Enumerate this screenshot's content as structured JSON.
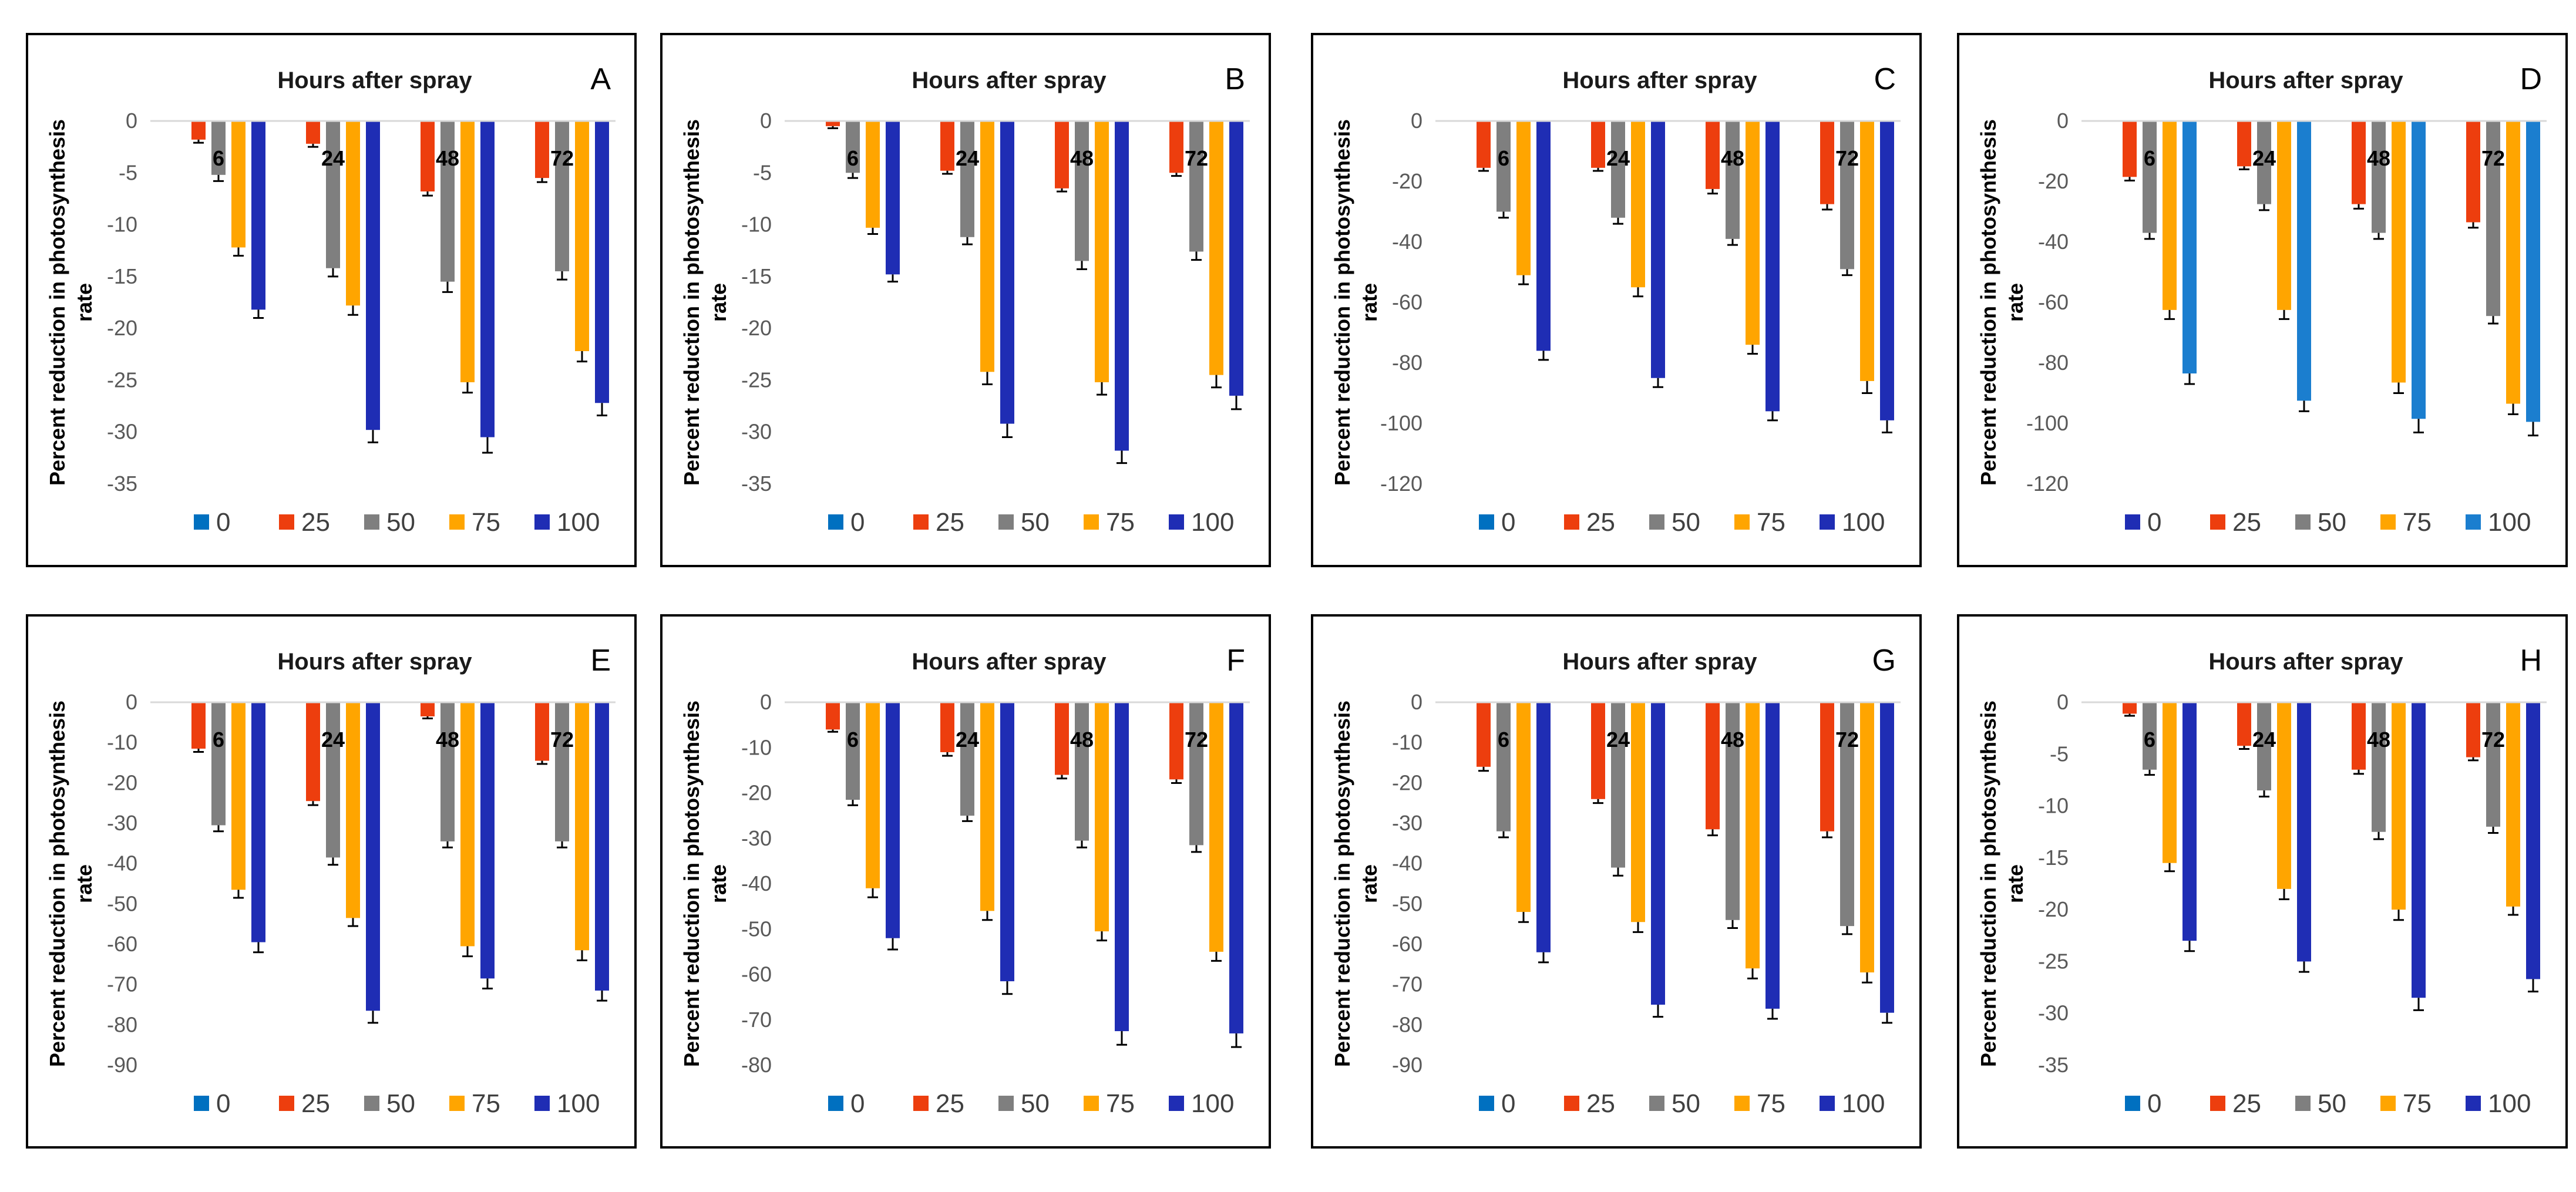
{
  "chart_data": [
    {
      "type": "bar",
      "panel": "A",
      "title": "Hours after spray",
      "ylabel": "Percent reduction in photosynthesis rate",
      "categories": [
        "6",
        "24",
        "48",
        "72"
      ],
      "ylim": [
        -35,
        0
      ],
      "yticks": [
        0,
        -5,
        -10,
        -15,
        -20,
        -25,
        -30,
        -35
      ],
      "legend": [
        {
          "name": "0",
          "color": "#0070C0"
        },
        {
          "name": "25",
          "color": "#ED3E0E"
        },
        {
          "name": "50",
          "color": "#7F7F7F"
        },
        {
          "name": "75",
          "color": "#FFA500"
        },
        {
          "name": "100",
          "color": "#1F2DB4"
        }
      ],
      "series": [
        {
          "name": "0",
          "values": [
            0,
            0,
            0,
            0
          ],
          "errors": [
            0,
            0,
            0,
            0
          ]
        },
        {
          "name": "25",
          "values": [
            -1.8,
            -2.2,
            -6.8,
            -5.5
          ],
          "errors": [
            0.3,
            0.3,
            0.4,
            0.4
          ]
        },
        {
          "name": "50",
          "values": [
            -5.2,
            -14.2,
            -15.5,
            -14.5
          ],
          "errors": [
            0.6,
            0.8,
            1.0,
            0.8
          ]
        },
        {
          "name": "75",
          "values": [
            -12.2,
            -17.8,
            -25.2,
            -22.2
          ],
          "errors": [
            0.8,
            0.9,
            1.0,
            1.0
          ]
        },
        {
          "name": "100",
          "values": [
            -18.2,
            -29.8,
            -30.5,
            -27.2
          ],
          "errors": [
            0.8,
            1.2,
            1.5,
            1.2
          ]
        }
      ]
    },
    {
      "type": "bar",
      "panel": "B",
      "title": "Hours after spray",
      "ylabel": "Percent reduction in photosynthesis rate",
      "categories": [
        "6",
        "24",
        "48",
        "72"
      ],
      "ylim": [
        -35,
        0
      ],
      "yticks": [
        0,
        -5,
        -10,
        -15,
        -20,
        -25,
        -30,
        -35
      ],
      "legend": [
        {
          "name": "0",
          "color": "#0070C0"
        },
        {
          "name": "25",
          "color": "#ED3E0E"
        },
        {
          "name": "50",
          "color": "#7F7F7F"
        },
        {
          "name": "75",
          "color": "#FFA500"
        },
        {
          "name": "100",
          "color": "#1F2DB4"
        }
      ],
      "series": [
        {
          "name": "0",
          "values": [
            0,
            0,
            0,
            0
          ],
          "errors": [
            0,
            0,
            0,
            0
          ]
        },
        {
          "name": "25",
          "values": [
            -0.5,
            -4.8,
            -6.5,
            -5.0
          ],
          "errors": [
            0.2,
            0.3,
            0.3,
            0.3
          ]
        },
        {
          "name": "50",
          "values": [
            -5.0,
            -11.2,
            -13.5,
            -12.6
          ],
          "errors": [
            0.5,
            0.7,
            0.8,
            0.8
          ]
        },
        {
          "name": "75",
          "values": [
            -10.3,
            -24.2,
            -25.2,
            -24.5
          ],
          "errors": [
            0.6,
            1.2,
            1.2,
            1.2
          ]
        },
        {
          "name": "100",
          "values": [
            -14.8,
            -29.2,
            -31.8,
            -26.5
          ],
          "errors": [
            0.7,
            1.3,
            1.2,
            1.3
          ]
        }
      ]
    },
    {
      "type": "bar",
      "panel": "C",
      "title": "Hours after spray",
      "ylabel": "Percent reduction in photosynthesis rate",
      "categories": [
        "6",
        "24",
        "48",
        "72"
      ],
      "ylim": [
        -120,
        0
      ],
      "yticks": [
        0,
        -20,
        -40,
        -60,
        -80,
        -100,
        -120
      ],
      "legend": [
        {
          "name": "0",
          "color": "#0070C0"
        },
        {
          "name": "25",
          "color": "#ED3E0E"
        },
        {
          "name": "50",
          "color": "#7F7F7F"
        },
        {
          "name": "75",
          "color": "#FFA500"
        },
        {
          "name": "100",
          "color": "#1F2DB4"
        }
      ],
      "series": [
        {
          "name": "0",
          "values": [
            0,
            0,
            0,
            0
          ],
          "errors": [
            0,
            0,
            0,
            0
          ]
        },
        {
          "name": "25",
          "values": [
            -15.5,
            -15.5,
            -22.5,
            -27.5
          ],
          "errors": [
            1.0,
            1.0,
            1.5,
            1.8
          ]
        },
        {
          "name": "50",
          "values": [
            -30,
            -32,
            -39,
            -49
          ],
          "errors": [
            2,
            2,
            2,
            2
          ]
        },
        {
          "name": "75",
          "values": [
            -51,
            -55,
            -74,
            -86
          ],
          "errors": [
            3,
            3,
            3,
            4
          ]
        },
        {
          "name": "100",
          "values": [
            -76,
            -85,
            -96,
            -99
          ],
          "errors": [
            3,
            3,
            3,
            4
          ]
        }
      ]
    },
    {
      "type": "bar",
      "panel": "D",
      "title": "Hours after spray",
      "ylabel": "Percent reduction in photosynthesis rate",
      "categories": [
        "6",
        "24",
        "48",
        "72"
      ],
      "ylim": [
        -120,
        0
      ],
      "yticks": [
        0,
        -20,
        -40,
        -60,
        -80,
        -100,
        -120
      ],
      "legend": [
        {
          "name": "0",
          "color": "#1F2DB4"
        },
        {
          "name": "25",
          "color": "#ED3E0E"
        },
        {
          "name": "50",
          "color": "#7F7F7F"
        },
        {
          "name": "75",
          "color": "#FFA500"
        },
        {
          "name": "100",
          "color": "#1B7ECF"
        }
      ],
      "series": [
        {
          "name": "0",
          "values": [
            0,
            0,
            0,
            0
          ],
          "errors": [
            0,
            0,
            0,
            0
          ]
        },
        {
          "name": "25",
          "values": [
            -18.5,
            -15,
            -27.5,
            -33.5
          ],
          "errors": [
            1.2,
            1.0,
            1.5,
            1.8
          ]
        },
        {
          "name": "50",
          "values": [
            -37,
            -27.5,
            -37,
            -64.5
          ],
          "errors": [
            2,
            2,
            2,
            2.5
          ]
        },
        {
          "name": "75",
          "values": [
            -62.5,
            -62.5,
            -86.5,
            -93.5
          ],
          "errors": [
            3,
            3,
            3.5,
            3.5
          ]
        },
        {
          "name": "100",
          "values": [
            -83.5,
            -92.5,
            -98.5,
            -99.5
          ],
          "errors": [
            3.5,
            3.5,
            4.5,
            4.5
          ]
        }
      ]
    },
    {
      "type": "bar",
      "panel": "E",
      "title": "Hours after spray",
      "ylabel": "Percent reduction in photosynthesis rate",
      "categories": [
        "6",
        "24",
        "48",
        "72"
      ],
      "ylim": [
        -90,
        0
      ],
      "yticks": [
        0,
        -10,
        -20,
        -30,
        -40,
        -50,
        -60,
        -70,
        -80,
        -90
      ],
      "legend": [
        {
          "name": "0",
          "color": "#0070C0"
        },
        {
          "name": "25",
          "color": "#ED3E0E"
        },
        {
          "name": "50",
          "color": "#7F7F7F"
        },
        {
          "name": "75",
          "color": "#FFA500"
        },
        {
          "name": "100",
          "color": "#1F2DB4"
        }
      ],
      "series": [
        {
          "name": "0",
          "values": [
            0,
            0,
            0,
            0
          ],
          "errors": [
            0,
            0,
            0,
            0
          ]
        },
        {
          "name": "25",
          "values": [
            -11.5,
            -24.5,
            -3.5,
            -14.5
          ],
          "errors": [
            0.8,
            1.0,
            0.5,
            0.8
          ]
        },
        {
          "name": "50",
          "values": [
            -30.5,
            -38.5,
            -34.5,
            -34.5
          ],
          "errors": [
            1.5,
            1.8,
            1.5,
            1.5
          ]
        },
        {
          "name": "75",
          "values": [
            -46.5,
            -53.5,
            -60.5,
            -61.5
          ],
          "errors": [
            2,
            2,
            2.5,
            2.5
          ]
        },
        {
          "name": "100",
          "values": [
            -59.5,
            -76.5,
            -68.5,
            -71.5
          ],
          "errors": [
            2.5,
            3,
            2.5,
            2.5
          ]
        }
      ]
    },
    {
      "type": "bar",
      "panel": "F",
      "title": "Hours after spray",
      "ylabel": "Percent reduction in photosynthesis rate",
      "categories": [
        "6",
        "24",
        "48",
        "72"
      ],
      "ylim": [
        -80,
        0
      ],
      "yticks": [
        0,
        -10,
        -20,
        -30,
        -40,
        -50,
        -60,
        -70,
        -80
      ],
      "legend": [
        {
          "name": "0",
          "color": "#0070C0"
        },
        {
          "name": "25",
          "color": "#ED3E0E"
        },
        {
          "name": "50",
          "color": "#7F7F7F"
        },
        {
          "name": "75",
          "color": "#FFA500"
        },
        {
          "name": "100",
          "color": "#1F2DB4"
        }
      ],
      "series": [
        {
          "name": "0",
          "values": [
            0,
            0,
            0,
            0
          ],
          "errors": [
            0,
            0,
            0,
            0
          ]
        },
        {
          "name": "25",
          "values": [
            -6,
            -11,
            -16,
            -17
          ],
          "errors": [
            0.5,
            0.8,
            0.8,
            0.8
          ]
        },
        {
          "name": "50",
          "values": [
            -21.5,
            -25,
            -30.5,
            -31.5
          ],
          "errors": [
            1.2,
            1.2,
            1.5,
            1.5
          ]
        },
        {
          "name": "75",
          "values": [
            -41,
            -46,
            -50.5,
            -55
          ],
          "errors": [
            2,
            2,
            2,
            2
          ]
        },
        {
          "name": "100",
          "values": [
            -52,
            -61.5,
            -72.5,
            -73
          ],
          "errors": [
            2.5,
            2.8,
            3,
            3
          ]
        }
      ]
    },
    {
      "type": "bar",
      "panel": "G",
      "title": "Hours after spray",
      "ylabel": "Percent reduction in photosynthesis rate",
      "categories": [
        "6",
        "24",
        "48",
        "72"
      ],
      "ylim": [
        -90,
        0
      ],
      "yticks": [
        0,
        -10,
        -20,
        -30,
        -40,
        -50,
        -60,
        -70,
        -80,
        -90
      ],
      "legend": [
        {
          "name": "0",
          "color": "#0070C0"
        },
        {
          "name": "25",
          "color": "#ED3E0E"
        },
        {
          "name": "50",
          "color": "#7F7F7F"
        },
        {
          "name": "75",
          "color": "#FFA500"
        },
        {
          "name": "100",
          "color": "#1F2DB4"
        }
      ],
      "series": [
        {
          "name": "0",
          "values": [
            0,
            0,
            0,
            0
          ],
          "errors": [
            0,
            0,
            0,
            0
          ]
        },
        {
          "name": "25",
          "values": [
            -16,
            -24,
            -31.5,
            -32
          ],
          "errors": [
            1,
            1,
            1.5,
            1.5
          ]
        },
        {
          "name": "50",
          "values": [
            -32,
            -41,
            -54,
            -55.5
          ],
          "errors": [
            1.5,
            2,
            2,
            2
          ]
        },
        {
          "name": "75",
          "values": [
            -52,
            -54.5,
            -66,
            -67
          ],
          "errors": [
            2.5,
            2.5,
            2.5,
            2.5
          ]
        },
        {
          "name": "100",
          "values": [
            -62,
            -75,
            -76,
            -77
          ],
          "errors": [
            2.5,
            3,
            2.5,
            2.5
          ]
        }
      ]
    },
    {
      "type": "bar",
      "panel": "H",
      "title": "Hours after spray",
      "ylabel": "Percent reduction in photosynthesis rate",
      "categories": [
        "6",
        "24",
        "48",
        "72"
      ],
      "ylim": [
        -35,
        0
      ],
      "yticks": [
        0,
        -5,
        -10,
        -15,
        -20,
        -25,
        -30,
        -35
      ],
      "legend": [
        {
          "name": "0",
          "color": "#0070C0"
        },
        {
          "name": "25",
          "color": "#ED3E0E"
        },
        {
          "name": "50",
          "color": "#7F7F7F"
        },
        {
          "name": "75",
          "color": "#FFA500"
        },
        {
          "name": "100",
          "color": "#1F2DB4"
        }
      ],
      "series": [
        {
          "name": "0",
          "values": [
            0,
            0,
            0,
            0
          ],
          "errors": [
            0,
            0,
            0,
            0
          ]
        },
        {
          "name": "25",
          "values": [
            -1.1,
            -4.2,
            -6.5,
            -5.3
          ],
          "errors": [
            0.2,
            0.3,
            0.4,
            0.3
          ]
        },
        {
          "name": "50",
          "values": [
            -6.5,
            -8.5,
            -12.5,
            -12
          ],
          "errors": [
            0.5,
            0.6,
            0.7,
            0.6
          ]
        },
        {
          "name": "75",
          "values": [
            -15.5,
            -18,
            -20,
            -19.7
          ],
          "errors": [
            0.8,
            1,
            1,
            0.8
          ]
        },
        {
          "name": "100",
          "values": [
            -23,
            -25,
            -28.5,
            -26.7
          ],
          "errors": [
            1,
            1,
            1.2,
            1.2
          ]
        }
      ]
    }
  ]
}
